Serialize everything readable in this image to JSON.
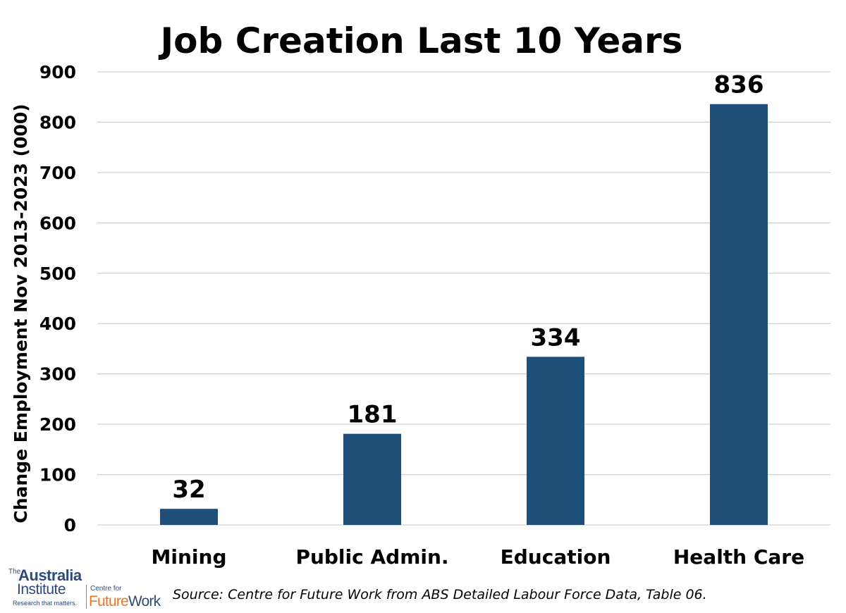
{
  "chart_data": {
    "type": "bar",
    "title": "Job Creation Last 10 Years",
    "categories": [
      "Mining",
      "Public Admin.",
      "Education",
      "Health Care"
    ],
    "values": [
      32,
      181,
      334,
      836
    ],
    "data_labels": [
      "32",
      "181",
      "334",
      "836"
    ],
    "xlabel": "",
    "ylabel": "Change Employment Nov 2013-2023 (000)",
    "ylim": [
      0,
      900
    ],
    "yticks": [
      0,
      100,
      200,
      300,
      400,
      500,
      600,
      700,
      800,
      900
    ],
    "grid": true,
    "legend": "none",
    "bar_color": "#1f4e79"
  },
  "source": "Source: Centre for Future Work from ABS Detailed Labour Force Data, Table 06.",
  "logo": {
    "the": "The",
    "australia": "Australia",
    "institute": "Institute",
    "tagline": "Research that matters.",
    "centre_for": "Centre for",
    "future": "Future",
    "work": "Work"
  }
}
